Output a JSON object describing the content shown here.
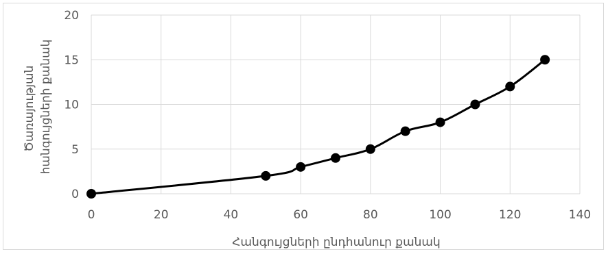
{
  "chart_data": {
    "type": "line",
    "xlabel": "Հանգույցների ընդհանուր քանակ",
    "ylabel_lines": [
      "Ծառայության",
      "հանգույցների քանակ"
    ],
    "xlim": [
      0,
      140
    ],
    "ylim": [
      0,
      20
    ],
    "x_ticks": [
      "0",
      "20",
      "40",
      "60",
      "80",
      "100",
      "120",
      "140"
    ],
    "y_ticks": [
      "0",
      "5",
      "10",
      "15",
      "20"
    ],
    "grid": true,
    "series": [
      {
        "x": [
          0,
          50,
          60,
          70,
          80,
          90,
          100,
          110,
          120,
          130
        ],
        "y": [
          0,
          2,
          3,
          4,
          5,
          7,
          8,
          10,
          12,
          15
        ],
        "color": "#000000",
        "marker": "circle",
        "smooth": true
      }
    ]
  }
}
